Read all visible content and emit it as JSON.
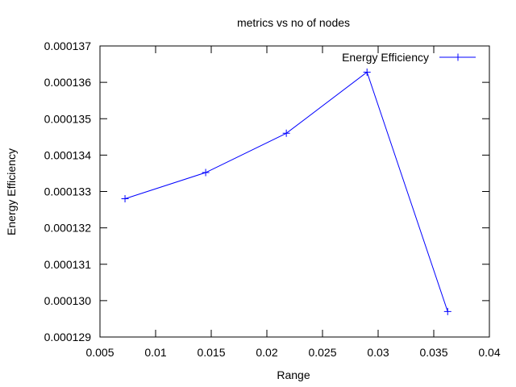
{
  "chart_data": {
    "type": "line",
    "title": "metrics vs no of nodes",
    "xlabel": "Range",
    "ylabel": "Energy Efficiency",
    "xlim": [
      0.005,
      0.04
    ],
    "ylim": [
      0.000129,
      0.000137
    ],
    "grid": false,
    "legend_position": "top-right",
    "x_ticks": [
      0.005,
      0.01,
      0.015,
      0.02,
      0.025,
      0.03,
      0.035,
      0.04
    ],
    "x_tick_labels": [
      "0.005",
      "0.01",
      "0.015",
      "0.02",
      "0.025",
      "0.03",
      "0.035",
      "0.04"
    ],
    "y_ticks": [
      0.000129,
      0.00013,
      0.000131,
      0.000132,
      0.000133,
      0.000134,
      0.000135,
      0.000136,
      0.000137
    ],
    "y_tick_labels": [
      "0.000129",
      "0.000130",
      "0.000131",
      "0.000132",
      "0.000133",
      "0.000134",
      "0.000135",
      "0.000136",
      "0.000137"
    ],
    "series": [
      {
        "name": "Energy Efficiency",
        "color": "#0000ff",
        "marker": "plus",
        "x": [
          0.00725,
          0.0145,
          0.02175,
          0.029,
          0.03625
        ],
        "y": [
          0.0001328,
          0.00013352,
          0.0001346,
          0.00013628,
          0.0001297
        ]
      }
    ]
  }
}
